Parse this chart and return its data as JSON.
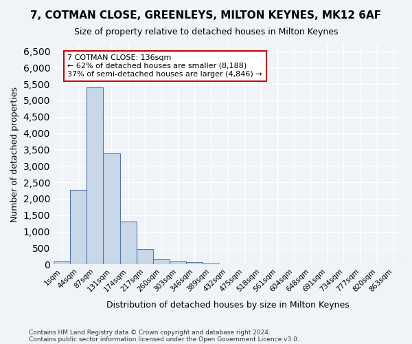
{
  "title": "7, COTMAN CLOSE, GREENLEYS, MILTON KEYNES, MK12 6AF",
  "subtitle": "Size of property relative to detached houses in Milton Keynes",
  "xlabel": "Distribution of detached houses by size in Milton Keynes",
  "ylabel": "Number of detached properties",
  "bar_color": "#c8d8e8",
  "bar_edge_color": "#5577aa",
  "bin_labels": [
    "1sqm",
    "44sqm",
    "87sqm",
    "131sqm",
    "174sqm",
    "217sqm",
    "260sqm",
    "303sqm",
    "346sqm",
    "389sqm",
    "432sqm",
    "475sqm",
    "518sqm",
    "561sqm",
    "604sqm",
    "648sqm",
    "691sqm",
    "734sqm",
    "777sqm",
    "820sqm",
    "863sqm"
  ],
  "bar_values": [
    80,
    2280,
    5400,
    3380,
    1310,
    470,
    160,
    85,
    60,
    30,
    10,
    5,
    3,
    2,
    1,
    1,
    0,
    0,
    0,
    0,
    0
  ],
  "ylim": [
    0,
    6700
  ],
  "yticks": [
    0,
    500,
    1000,
    1500,
    2000,
    2500,
    3000,
    3500,
    4000,
    4500,
    5000,
    5500,
    6000,
    6500
  ],
  "annotation_text": "7 COTMAN CLOSE: 136sqm\n← 62% of detached houses are smaller (8,188)\n37% of semi-detached houses are larger (4,846) →",
  "annotation_box_color": "#ffffff",
  "annotation_box_edge": "#cc0000",
  "footer_line1": "Contains HM Land Registry data © Crown copyright and database right 2024.",
  "footer_line2": "Contains public sector information licensed under the Open Government Licence v3.0.",
  "background_color": "#f0f4f8",
  "plot_background": "#f0f4f8",
  "grid_color": "#ffffff"
}
